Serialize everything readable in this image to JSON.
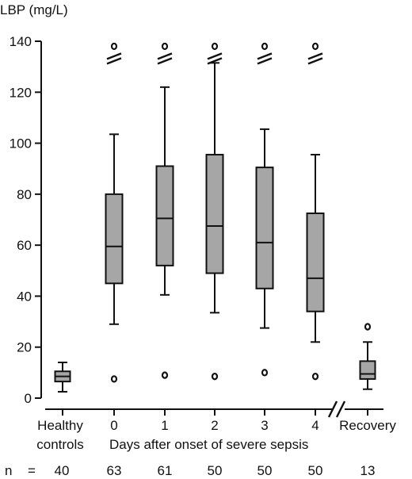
{
  "chart_data": {
    "type": "box",
    "ylabel": "LBP (mg/L)",
    "ylim": [
      0,
      140
    ],
    "yticks": [
      0,
      20,
      40,
      60,
      80,
      100,
      120,
      140
    ],
    "xlabel": "Days after onset of severe sepsis",
    "n_prefix": "n",
    "n_equals": "=",
    "groups": [
      {
        "label": [
          "Healthy",
          "controls"
        ],
        "n": "40",
        "whisker_low": 2.5,
        "q1": 6.5,
        "median": 8.5,
        "q3": 10.5,
        "whisker_high": 14,
        "outliers_low": [],
        "outliers_high": [],
        "axis_break_marker": false
      },
      {
        "label": [
          "0"
        ],
        "n": "63",
        "whisker_low": 29,
        "q1": 45,
        "median": 59.5,
        "q3": 80,
        "whisker_high": 103.5,
        "outliers_low": [
          7.5
        ],
        "outliers_high": [
          138
        ],
        "axis_break_marker": true
      },
      {
        "label": [
          "1"
        ],
        "n": "61",
        "whisker_low": 40.5,
        "q1": 52,
        "median": 70.5,
        "q3": 91,
        "whisker_high": 122,
        "outliers_low": [
          9
        ],
        "outliers_high": [
          138
        ],
        "axis_break_marker": true
      },
      {
        "label": [
          "2"
        ],
        "n": "50",
        "whisker_low": 33.5,
        "q1": 49,
        "median": 67.5,
        "q3": 95.5,
        "whisker_high": 131.5,
        "outliers_low": [
          8.5
        ],
        "outliers_high": [
          138
        ],
        "axis_break_marker": true
      },
      {
        "label": [
          "3"
        ],
        "n": "50",
        "whisker_low": 27.5,
        "q1": 43,
        "median": 61,
        "q3": 90.5,
        "whisker_high": 105.5,
        "outliers_low": [
          10
        ],
        "outliers_high": [
          138
        ],
        "axis_break_marker": true
      },
      {
        "label": [
          "4"
        ],
        "n": "50",
        "whisker_low": 22,
        "q1": 34,
        "median": 47,
        "q3": 72.5,
        "whisker_high": 95.5,
        "outliers_low": [
          8.5
        ],
        "outliers_high": [
          138
        ],
        "axis_break_marker": true
      },
      {
        "label": [
          "Recovery"
        ],
        "n": "13",
        "whisker_low": 3.5,
        "q1": 7.5,
        "median": 9.5,
        "q3": 14.5,
        "whisker_high": 22,
        "outliers_low": [],
        "outliers_high": [
          28
        ],
        "axis_break_marker": false
      }
    ],
    "x_axis_break_between": [
      5,
      6
    ],
    "box_fill": "#a6a6a6",
    "line_color": "#111111"
  }
}
